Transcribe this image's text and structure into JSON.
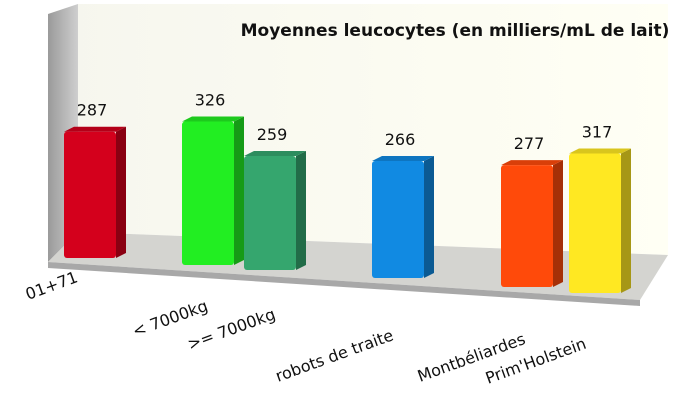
{
  "chart_data": {
    "type": "bar",
    "title": "Moyennes leucocytes (en milliers/mL de lait)",
    "categories": [
      "01+71",
      "< 7000kg",
      ">= 7000kg",
      "robots de traite",
      "Montbéliardes",
      "Prim'Holstein"
    ],
    "values": [
      287,
      326,
      259,
      266,
      277,
      317
    ],
    "colors": [
      "#d4001c",
      "#22ee22",
      "#35a66e",
      "#118ae2",
      "#ff4a0a",
      "#ffe822"
    ]
  }
}
